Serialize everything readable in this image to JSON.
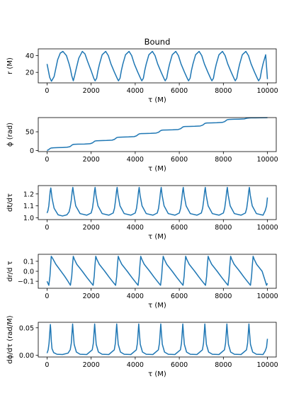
{
  "chart_data": [
    {
      "type": "line",
      "title": "Bound",
      "xlabel": "τ (M)",
      "ylabel": "r (M)",
      "xlim": [
        -400,
        10400
      ],
      "ylim": [
        7.5,
        48
      ],
      "xticks": [
        0,
        2000,
        4000,
        6000,
        8000,
        10000
      ],
      "yticks": [
        20,
        40
      ],
      "color": "#1f77b4",
      "series": [
        {
          "x": [
            0,
            60,
            120,
            200,
            320,
            480,
            600,
            720,
            880,
            1000,
            1060,
            1120,
            1190,
            1250,
            1320,
            1440,
            1600,
            1720,
            1840,
            2000,
            2120,
            2180,
            2250,
            2310,
            2380,
            2500,
            2660,
            2780,
            2900,
            3060,
            3180,
            3240,
            3310,
            3370,
            3440,
            3560,
            3720,
            3840,
            3960,
            4120,
            4240,
            4300,
            4370,
            4430,
            4500,
            4620,
            4780,
            4900,
            5020,
            5180,
            5300,
            5360,
            5430,
            5490,
            5560,
            5680,
            5840,
            5960,
            6080,
            6240,
            6360,
            6420,
            6490,
            6550,
            6620,
            6740,
            6900,
            7020,
            7140,
            7300,
            7420,
            7480,
            7550,
            7610,
            7680,
            7800,
            7960,
            8080,
            8200,
            8360,
            8480,
            8540,
            8610,
            8670,
            8740,
            8860,
            9020,
            9140,
            9260,
            9420,
            9540,
            9600,
            9670,
            9730,
            9800,
            9920,
            10000
          ],
          "y": [
            30,
            22,
            14,
            9.5,
            15,
            35,
            43,
            45,
            40,
            30,
            24,
            16,
            10,
            16,
            24,
            37,
            45,
            42,
            33,
            22,
            13,
            10,
            13,
            22,
            30,
            41,
            45,
            40,
            30,
            20,
            13,
            10,
            13,
            22,
            30,
            41,
            45,
            40,
            30,
            20,
            13,
            10,
            13,
            22,
            30,
            41,
            45,
            40,
            30,
            20,
            13,
            10,
            13,
            22,
            30,
            41,
            45,
            40,
            30,
            20,
            13,
            10,
            13,
            22,
            30,
            41,
            45,
            40,
            30,
            20,
            13,
            10,
            13,
            22,
            30,
            41,
            45,
            40,
            30,
            20,
            13,
            10,
            13,
            22,
            30,
            41,
            45,
            40,
            30,
            20,
            13,
            10,
            13,
            22,
            30,
            41,
            12
          ]
        }
      ]
    },
    {
      "type": "line",
      "title": "",
      "xlabel": "τ (M)",
      "ylabel": "ϕ (rad)",
      "xlim": [
        -400,
        10400
      ],
      "ylim": [
        -3,
        88
      ],
      "xticks": [
        0,
        2000,
        4000,
        6000,
        8000,
        10000
      ],
      "yticks": [
        0,
        50
      ],
      "color": "#1f77b4",
      "series": [
        {
          "x": [
            0,
            70,
            100,
            130,
            180,
            300,
            500,
            700,
            900,
            1030,
            1080,
            1120,
            1160,
            1220,
            1400,
            1700,
            1950,
            2050,
            2100,
            2140,
            2180,
            2250,
            2450,
            2700,
            2950,
            3050,
            3100,
            3140,
            3180,
            3250,
            3450,
            3700,
            3950,
            4050,
            4100,
            4140,
            4180,
            4250,
            4450,
            4700,
            4950,
            5050,
            5100,
            5140,
            5180,
            5250,
            5450,
            5700,
            5950,
            6050,
            6100,
            6140,
            6180,
            6250,
            6450,
            6700,
            6950,
            7050,
            7100,
            7140,
            7180,
            7250,
            7450,
            7700,
            7950,
            8050,
            8100,
            8140,
            8180,
            8250,
            8450,
            8700,
            8950,
            9050,
            9100,
            9140,
            9180,
            9250,
            9450,
            9700,
            10000
          ],
          "y": [
            0,
            2,
            3.5,
            5,
            6.5,
            7.2,
            7.6,
            8,
            8.6,
            10,
            12,
            14,
            15.5,
            16.4,
            16.8,
            17.2,
            18,
            20,
            22,
            24,
            25.3,
            26,
            26.4,
            26.8,
            27.6,
            29.5,
            31.5,
            33.5,
            34.8,
            35.5,
            35.9,
            36.3,
            37.1,
            39,
            41,
            43,
            44.3,
            45,
            45.4,
            45.8,
            46.6,
            48.5,
            50.5,
            52.5,
            53.8,
            54.5,
            54.9,
            55.3,
            56.1,
            58,
            60,
            62,
            63.3,
            64,
            64.4,
            64.8,
            65.6,
            67.5,
            69.5,
            71.5,
            72.8,
            73.5,
            73.9,
            74.3,
            75.1,
            77,
            79,
            81,
            82.3,
            83,
            83.4,
            83.8,
            84.5,
            86,
            86.5,
            86.8,
            87,
            87.2,
            87.4,
            87.6,
            87.8
          ]
        }
      ]
    },
    {
      "type": "line",
      "title": "",
      "xlabel": "τ (M)",
      "ylabel": "dt/dτ",
      "xlim": [
        -400,
        10400
      ],
      "ylim": [
        0.985,
        1.27
      ],
      "xticks": [
        0,
        2000,
        4000,
        6000,
        8000,
        10000
      ],
      "yticks": [
        1.0,
        1.1,
        1.2
      ],
      "ytick_labels": [
        "1.0",
        "1.1",
        "1.2"
      ],
      "color": "#1f77b4",
      "series": [
        {
          "x": [
            0,
            40,
            80,
            110,
            140,
            170,
            190,
            230,
            320,
            500,
            700,
            900,
            1000,
            1050,
            1100,
            1140,
            1170,
            1210,
            1300,
            1500,
            1800,
            2000,
            2060,
            2110,
            2150,
            2180,
            2220,
            2310,
            2500,
            2800,
            3000,
            3060,
            3110,
            3150,
            3180,
            3220,
            3310,
            3500,
            3800,
            4000,
            4060,
            4110,
            4150,
            4180,
            4220,
            4310,
            4500,
            4800,
            5000,
            5060,
            5110,
            5150,
            5180,
            5220,
            5310,
            5500,
            5800,
            6000,
            6060,
            6110,
            6150,
            6180,
            6220,
            6310,
            6500,
            6800,
            7000,
            7060,
            7110,
            7150,
            7180,
            7220,
            7310,
            7500,
            7800,
            8000,
            8060,
            8110,
            8150,
            8180,
            8220,
            8310,
            8500,
            8800,
            9000,
            9060,
            9110,
            9150,
            9180,
            9220,
            9310,
            9500,
            9800,
            9900,
            9960,
            10000
          ],
          "y": [
            1.04,
            1.06,
            1.1,
            1.16,
            1.22,
            1.25,
            1.22,
            1.16,
            1.08,
            1.025,
            1.015,
            1.025,
            1.05,
            1.09,
            1.15,
            1.22,
            1.255,
            1.2,
            1.1,
            1.035,
            1.022,
            1.04,
            1.08,
            1.15,
            1.22,
            1.255,
            1.19,
            1.1,
            1.035,
            1.022,
            1.04,
            1.08,
            1.15,
            1.22,
            1.255,
            1.19,
            1.1,
            1.035,
            1.022,
            1.04,
            1.08,
            1.15,
            1.22,
            1.255,
            1.19,
            1.1,
            1.035,
            1.022,
            1.04,
            1.08,
            1.15,
            1.22,
            1.255,
            1.19,
            1.1,
            1.035,
            1.022,
            1.04,
            1.08,
            1.15,
            1.22,
            1.255,
            1.19,
            1.1,
            1.035,
            1.022,
            1.04,
            1.08,
            1.15,
            1.22,
            1.255,
            1.19,
            1.1,
            1.035,
            1.022,
            1.04,
            1.08,
            1.15,
            1.22,
            1.255,
            1.19,
            1.1,
            1.035,
            1.022,
            1.04,
            1.08,
            1.15,
            1.22,
            1.255,
            1.19,
            1.1,
            1.035,
            1.022,
            1.06,
            1.1,
            1.17
          ]
        }
      ]
    },
    {
      "type": "line",
      "title": "",
      "xlabel": "τ (M)",
      "ylabel": "dr/d τ",
      "xlim": [
        -400,
        10400
      ],
      "ylim": [
        -0.17,
        0.17
      ],
      "xticks": [
        0,
        2000,
        4000,
        6000,
        8000,
        10000
      ],
      "yticks": [
        -0.1,
        0.0,
        0.1
      ],
      "ytick_labels": [
        "−0.1",
        "0.0",
        "0.1"
      ],
      "color": "#1f77b4",
      "series": [
        {
          "x": [
            0,
            80,
            130,
            160,
            190,
            250,
            400,
            600,
            800,
            950,
            1060,
            1120,
            1150,
            1190,
            1240,
            1350,
            1600,
            1800,
            1980,
            2090,
            2140,
            2170,
            2210,
            2260,
            2370,
            2620,
            2820,
            3000,
            3110,
            3160,
            3190,
            3230,
            3280,
            3390,
            3640,
            3840,
            4020,
            4130,
            4180,
            4210,
            4250,
            4300,
            4410,
            4660,
            4860,
            5040,
            5150,
            5200,
            5230,
            5270,
            5320,
            5430,
            5680,
            5880,
            6060,
            6170,
            6220,
            6250,
            6290,
            6340,
            6450,
            6700,
            6900,
            7080,
            7190,
            7240,
            7270,
            7310,
            7360,
            7470,
            7720,
            7920,
            8100,
            8210,
            8260,
            8290,
            8330,
            8380,
            8490,
            8740,
            8940,
            9120,
            9230,
            9280,
            9310,
            9350,
            9400,
            9510,
            9760,
            9960,
            10000
          ],
          "y": [
            -0.1,
            -0.14,
            -0.05,
            0.05,
            0.15,
            0.13,
            0.07,
            0.01,
            -0.05,
            -0.1,
            -0.14,
            -0.05,
            0.05,
            0.15,
            0.12,
            0.07,
            0.0,
            -0.06,
            -0.11,
            -0.14,
            -0.05,
            0.05,
            0.15,
            0.12,
            0.07,
            0.0,
            -0.06,
            -0.11,
            -0.14,
            -0.05,
            0.05,
            0.15,
            0.12,
            0.07,
            0.0,
            -0.06,
            -0.11,
            -0.14,
            -0.05,
            0.05,
            0.15,
            0.12,
            0.07,
            0.0,
            -0.06,
            -0.11,
            -0.14,
            -0.05,
            0.05,
            0.15,
            0.12,
            0.07,
            0.0,
            -0.06,
            -0.11,
            -0.14,
            -0.05,
            0.05,
            0.15,
            0.12,
            0.07,
            0.0,
            -0.06,
            -0.11,
            -0.14,
            -0.05,
            0.05,
            0.15,
            0.12,
            0.07,
            0.0,
            -0.06,
            -0.11,
            -0.14,
            -0.05,
            0.05,
            0.15,
            0.12,
            0.07,
            0.0,
            -0.06,
            -0.11,
            -0.14,
            -0.05,
            0.05,
            0.15,
            0.12,
            0.07,
            0.0,
            -0.14,
            -0.12
          ]
        }
      ]
    },
    {
      "type": "line",
      "title": "",
      "xlabel": "τ (M)",
      "ylabel": "dϕ/dτ (rad/M)",
      "xlim": [
        -400,
        10400
      ],
      "ylim": [
        -0.003,
        0.06
      ],
      "xticks": [
        0,
        2000,
        4000,
        6000,
        8000,
        10000
      ],
      "yticks": [
        0.0,
        0.05
      ],
      "ytick_labels": [
        "0.00",
        "0.05"
      ],
      "color": "#1f77b4",
      "series": [
        {
          "x": [
            0,
            50,
            90,
            120,
            150,
            170,
            195,
            225,
            300,
            450,
            700,
            950,
            1050,
            1100,
            1130,
            1160,
            1190,
            1230,
            1330,
            1500,
            1800,
            2050,
            2100,
            2130,
            2160,
            2190,
            2230,
            2330,
            2500,
            2800,
            3050,
            3100,
            3130,
            3160,
            3190,
            3230,
            3330,
            3500,
            3800,
            4050,
            4100,
            4130,
            4160,
            4190,
            4230,
            4330,
            4500,
            4800,
            5050,
            5100,
            5130,
            5160,
            5190,
            5230,
            5330,
            5500,
            5800,
            6050,
            6100,
            6130,
            6160,
            6190,
            6230,
            6330,
            6500,
            6800,
            7050,
            7100,
            7130,
            7160,
            7190,
            7230,
            7330,
            7500,
            7800,
            8050,
            8100,
            8130,
            8160,
            8190,
            8230,
            8330,
            8500,
            8800,
            9050,
            9100,
            9130,
            9160,
            9190,
            9230,
            9330,
            9500,
            9800,
            9900,
            9960,
            10000
          ],
          "y": [
            0.004,
            0.01,
            0.022,
            0.04,
            0.056,
            0.045,
            0.025,
            0.012,
            0.005,
            0.002,
            0.0015,
            0.004,
            0.01,
            0.022,
            0.04,
            0.057,
            0.04,
            0.02,
            0.006,
            0.002,
            0.0015,
            0.01,
            0.022,
            0.04,
            0.057,
            0.04,
            0.02,
            0.006,
            0.002,
            0.0015,
            0.01,
            0.022,
            0.04,
            0.057,
            0.04,
            0.02,
            0.006,
            0.002,
            0.0015,
            0.01,
            0.022,
            0.04,
            0.057,
            0.04,
            0.02,
            0.006,
            0.002,
            0.0015,
            0.01,
            0.022,
            0.04,
            0.057,
            0.04,
            0.02,
            0.006,
            0.002,
            0.0015,
            0.01,
            0.022,
            0.04,
            0.057,
            0.04,
            0.02,
            0.006,
            0.002,
            0.0015,
            0.01,
            0.022,
            0.04,
            0.057,
            0.04,
            0.02,
            0.006,
            0.002,
            0.0015,
            0.01,
            0.022,
            0.04,
            0.057,
            0.04,
            0.02,
            0.006,
            0.002,
            0.0015,
            0.01,
            0.022,
            0.04,
            0.057,
            0.04,
            0.02,
            0.006,
            0.002,
            0.0015,
            0.008,
            0.015,
            0.03
          ]
        }
      ]
    }
  ]
}
